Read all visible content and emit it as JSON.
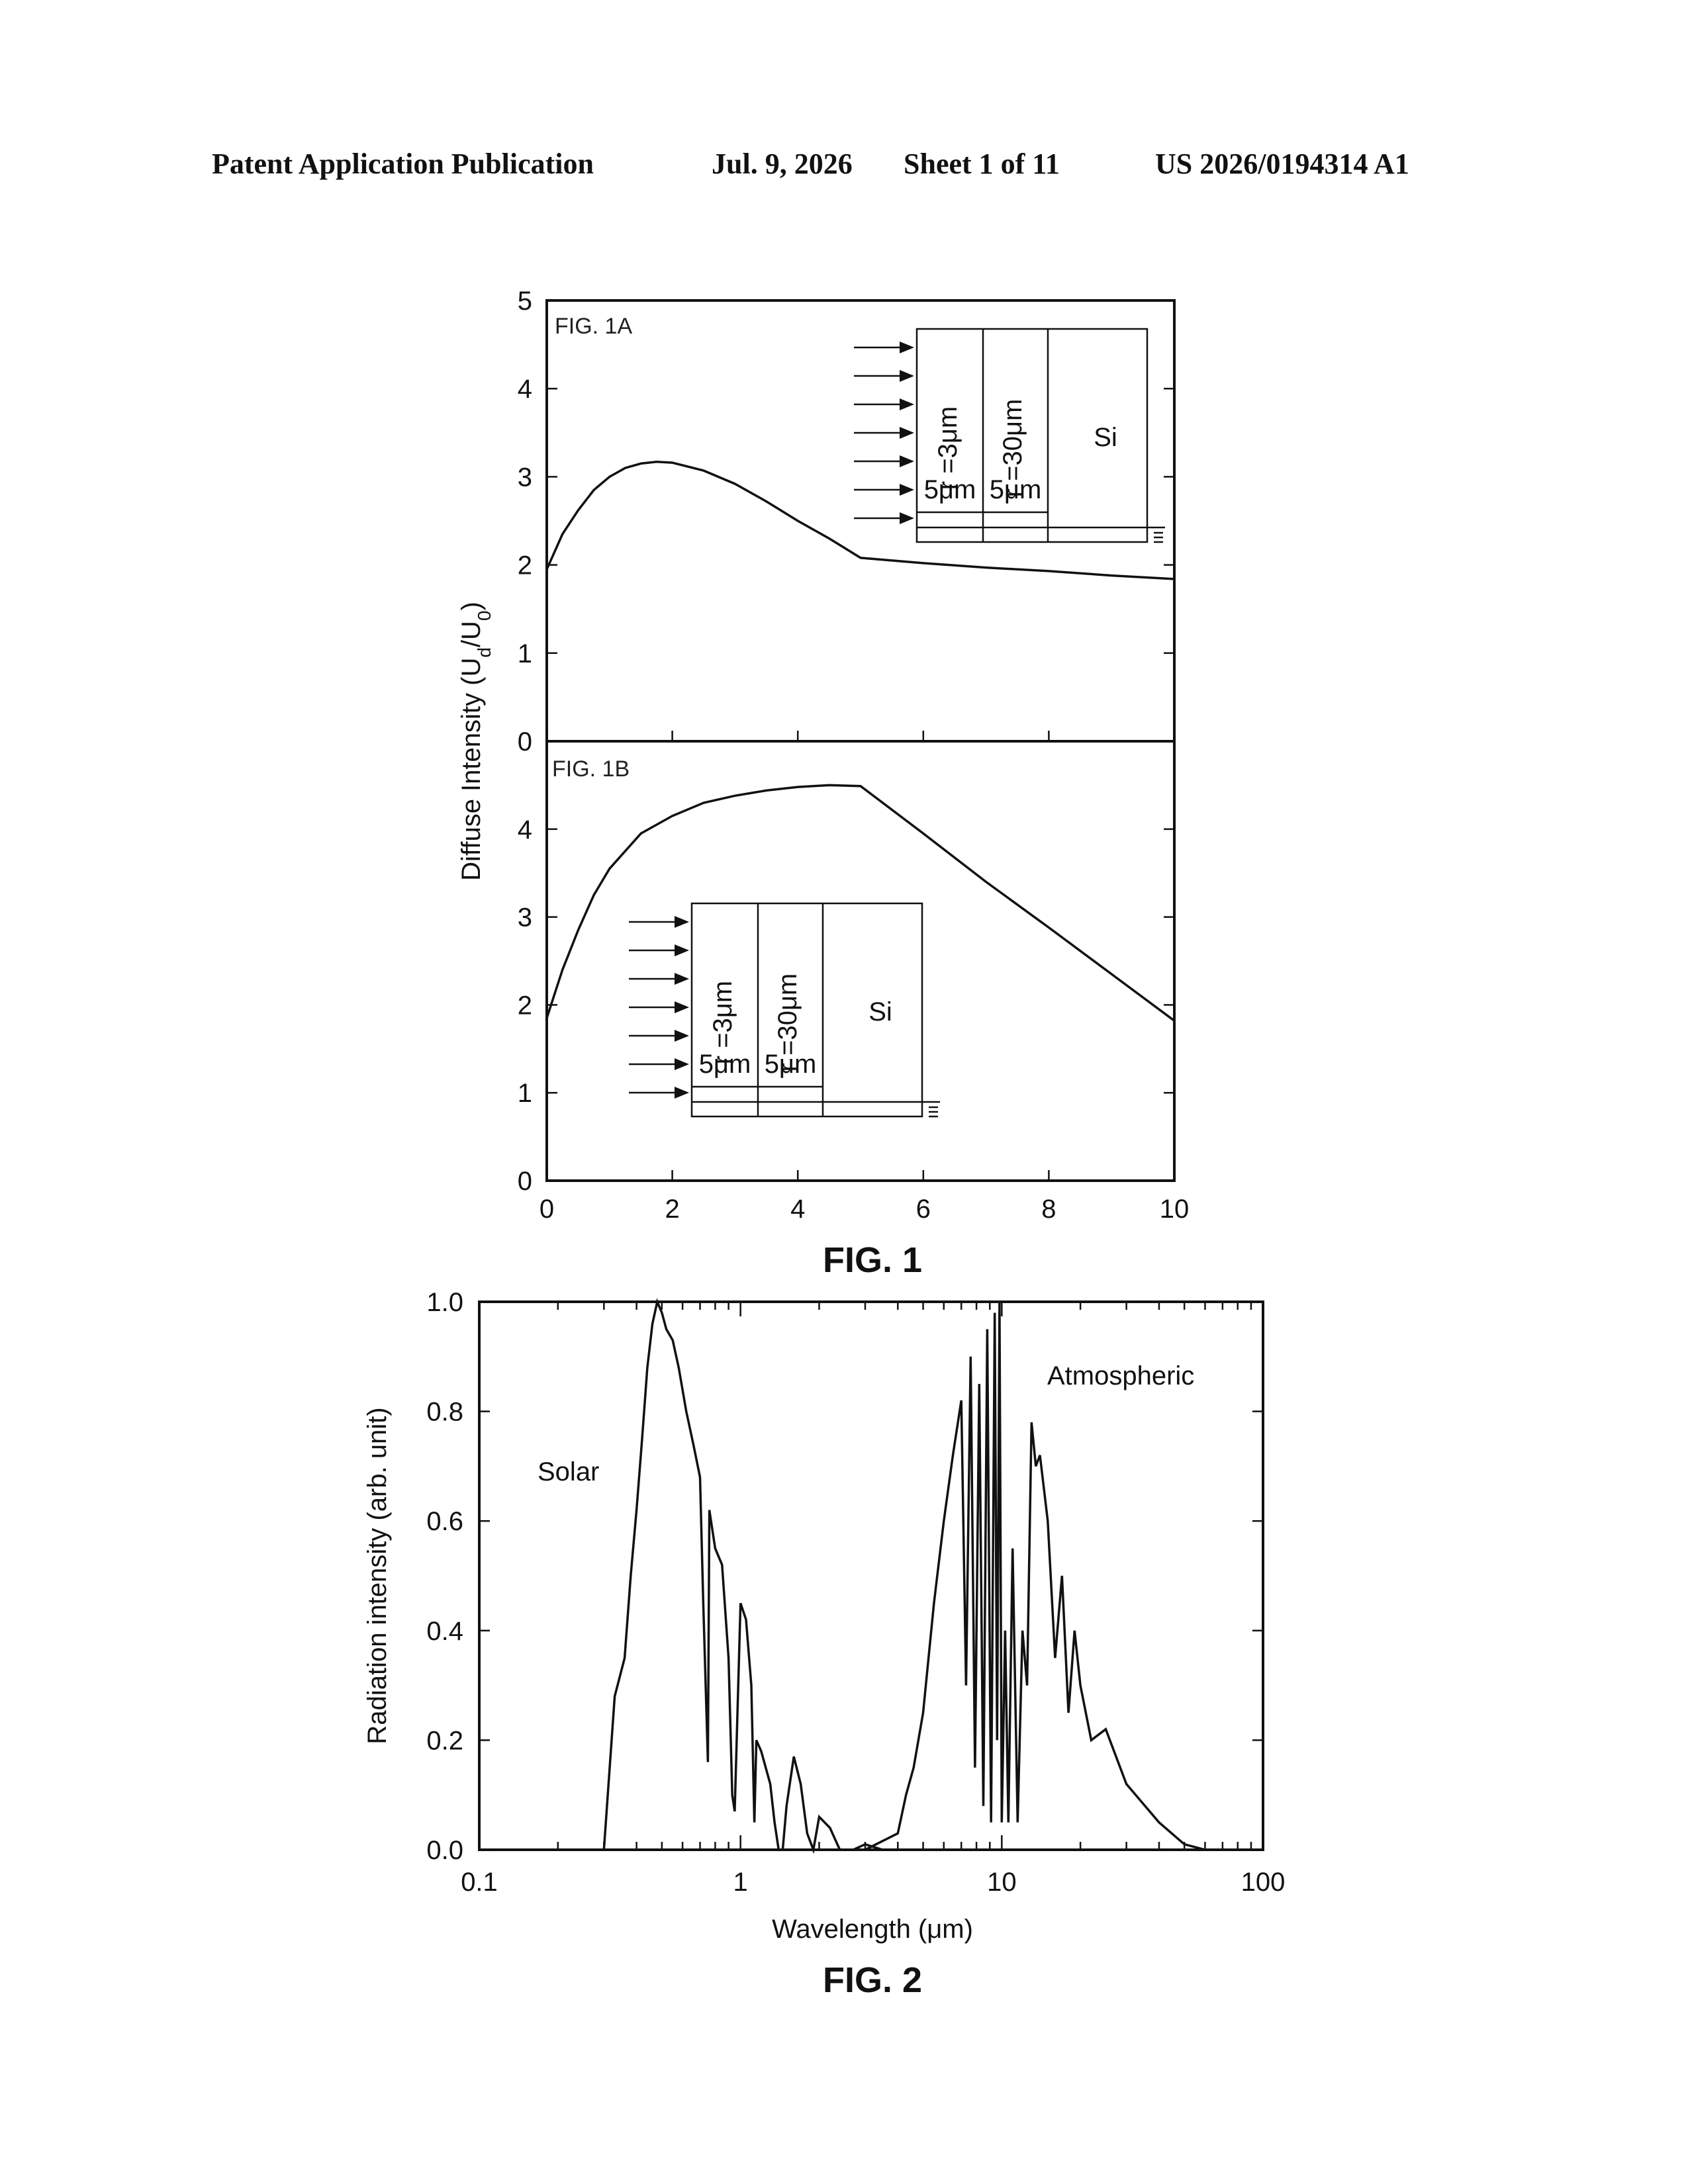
{
  "header": {
    "publication": "Patent Application Publication",
    "date": "Jul. 9, 2026",
    "sheet": "Sheet 1 of 11",
    "number": "US 2026/0194314 A1"
  },
  "figure1": {
    "caption": "FIG. 1",
    "ylabel_text": "Diffuse Intensity (U",
    "ylabel_sub1": "d",
    "ylabel_mid": "/U",
    "ylabel_sub2": "0",
    "ylabel_end": ")"
  },
  "figure2": {
    "caption": "FIG. 2",
    "ylabel": "Radiation intensity (arb. unit)",
    "xlabel": "Wavelength (μm)",
    "annotation_solar": "Solar",
    "annotation_atmospheric": "Atmospheric"
  },
  "inset": {
    "layer1": "r =3μm",
    "layer2": "r =30μm",
    "substrate": "Si",
    "thickness1": "5μm",
    "thickness2": "5μm"
  },
  "chart_data": [
    {
      "type": "line",
      "panel_label": "FIG. 1A",
      "xlim": [
        0,
        10
      ],
      "ylim": [
        0,
        5
      ],
      "xticks": [
        0,
        2,
        4,
        6,
        8,
        10
      ],
      "yticks": [
        0,
        1,
        2,
        3,
        4,
        5
      ],
      "series": [
        {
          "x": [
            0,
            0.25,
            0.5,
            0.75,
            1.0,
            1.25,
            1.5,
            1.75,
            2.0,
            2.5,
            3.0,
            3.5,
            4.0,
            4.5,
            5.0,
            6.0,
            7.0,
            8.0,
            9.0,
            10.0
          ],
          "y": [
            1.95,
            2.35,
            2.62,
            2.85,
            3.0,
            3.1,
            3.15,
            3.17,
            3.16,
            3.07,
            2.92,
            2.72,
            2.5,
            2.3,
            2.08,
            2.02,
            1.97,
            1.93,
            1.88,
            1.84
          ]
        }
      ]
    },
    {
      "type": "line",
      "panel_label": "FIG. 1B",
      "xlim": [
        0,
        10
      ],
      "ylim": [
        0,
        5
      ],
      "xticks": [
        0,
        2,
        4,
        6,
        8,
        10
      ],
      "yticks": [
        0,
        1,
        2,
        3,
        4
      ],
      "series": [
        {
          "x": [
            0,
            0.25,
            0.5,
            0.75,
            1.0,
            1.5,
            2.0,
            2.5,
            3.0,
            3.5,
            4.0,
            4.5,
            5.0,
            6.0,
            7.0,
            8.0,
            9.0,
            10.0
          ],
          "y": [
            1.85,
            2.4,
            2.85,
            3.25,
            3.55,
            3.95,
            4.15,
            4.3,
            4.38,
            4.44,
            4.48,
            4.5,
            4.49,
            3.95,
            3.4,
            2.88,
            2.35,
            1.82
          ]
        }
      ]
    },
    {
      "type": "line",
      "xscale": "log",
      "xlim": [
        0.1,
        100
      ],
      "ylim": [
        0,
        1
      ],
      "xticks": [
        0.1,
        1,
        10,
        100
      ],
      "yticks": [
        0.0,
        0.2,
        0.4,
        0.6,
        0.8,
        1.0
      ],
      "series": [
        {
          "name": "Solar",
          "x": [
            0.3,
            0.33,
            0.36,
            0.38,
            0.4,
            0.42,
            0.44,
            0.46,
            0.48,
            0.5,
            0.52,
            0.55,
            0.58,
            0.62,
            0.66,
            0.7,
            0.72,
            0.75,
            0.76,
            0.8,
            0.85,
            0.9,
            0.93,
            0.95,
            1.0,
            1.05,
            1.1,
            1.13,
            1.15,
            1.2,
            1.3,
            1.35,
            1.4,
            1.45,
            1.5,
            1.6,
            1.7,
            1.8,
            1.9,
            2.0,
            2.2,
            2.4,
            2.5,
            2.7,
            3.0,
            3.5,
            4.0
          ],
          "y": [
            0.0,
            0.28,
            0.35,
            0.5,
            0.62,
            0.75,
            0.88,
            0.96,
            1.0,
            0.98,
            0.95,
            0.93,
            0.88,
            0.8,
            0.74,
            0.68,
            0.45,
            0.16,
            0.62,
            0.55,
            0.52,
            0.35,
            0.1,
            0.07,
            0.45,
            0.42,
            0.3,
            0.05,
            0.2,
            0.18,
            0.12,
            0.05,
            0.0,
            0.0,
            0.08,
            0.17,
            0.12,
            0.03,
            0.0,
            0.06,
            0.04,
            0.0,
            0.0,
            0.0,
            0.01,
            0.0,
            0.0
          ]
        },
        {
          "name": "Atmospheric",
          "x": [
            3.0,
            4.0,
            4.3,
            4.6,
            5.0,
            5.5,
            6.0,
            6.5,
            7.0,
            7.3,
            7.6,
            7.9,
            8.2,
            8.5,
            8.8,
            9.1,
            9.4,
            9.6,
            9.8,
            10.0,
            10.3,
            10.6,
            11.0,
            11.5,
            12.0,
            12.5,
            13.0,
            13.5,
            14.0,
            15.0,
            16.0,
            17.0,
            18.0,
            19.0,
            20.0,
            22.0,
            25.0,
            30.0,
            40.0,
            50.0,
            60.0
          ],
          "y": [
            0.0,
            0.03,
            0.1,
            0.15,
            0.25,
            0.45,
            0.6,
            0.72,
            0.82,
            0.3,
            0.9,
            0.15,
            0.85,
            0.08,
            0.95,
            0.05,
            0.98,
            0.2,
            1.0,
            0.05,
            0.4,
            0.05,
            0.55,
            0.05,
            0.4,
            0.3,
            0.78,
            0.7,
            0.72,
            0.6,
            0.35,
            0.5,
            0.25,
            0.4,
            0.3,
            0.2,
            0.22,
            0.12,
            0.05,
            0.01,
            0.0
          ]
        }
      ]
    }
  ]
}
